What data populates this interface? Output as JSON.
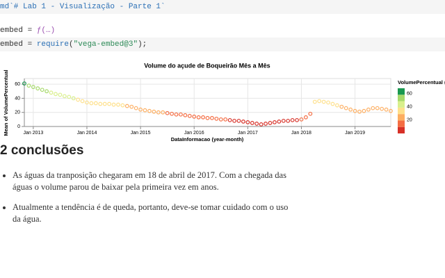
{
  "cells": [
    {
      "parts": [
        "md`# Lab 1 - Visualização - Parte 1`"
      ]
    },
    {
      "parts": [
        "embed = ",
        "ƒ(…)"
      ]
    },
    {
      "parts": [
        "embed = ",
        "require",
        "(",
        "\"vega-embed@3\"",
        ");"
      ]
    }
  ],
  "chart_data": {
    "type": "scatter",
    "title": "Volume do açude de Boqueirão Mês a Mês",
    "x_label": "DataInformacao (year-month)",
    "y_label": "Mean of VolumePercentual",
    "x": [
      "2012-11",
      "2012-12",
      "2013-01",
      "2013-02",
      "2013-03",
      "2013-04",
      "2013-05",
      "2013-06",
      "2013-07",
      "2013-08",
      "2013-09",
      "2013-10",
      "2013-11",
      "2013-12",
      "2014-01",
      "2014-02",
      "2014-03",
      "2014-04",
      "2014-05",
      "2014-06",
      "2014-07",
      "2014-08",
      "2014-09",
      "2014-10",
      "2014-11",
      "2014-12",
      "2015-01",
      "2015-02",
      "2015-03",
      "2015-04",
      "2015-05",
      "2015-06",
      "2015-07",
      "2015-08",
      "2015-09",
      "2015-10",
      "2015-11",
      "2015-12",
      "2016-01",
      "2016-02",
      "2016-03",
      "2016-04",
      "2016-05",
      "2016-06",
      "2016-07",
      "2016-08",
      "2016-09",
      "2016-10",
      "2016-11",
      "2016-12",
      "2017-01",
      "2017-02",
      "2017-03",
      "2017-04",
      "2017-05",
      "2017-06",
      "2017-07",
      "2017-08",
      "2017-09",
      "2017-10",
      "2017-11",
      "2017-12",
      "2018-01",
      "2018-02",
      "2018-03",
      "2018-04",
      "2018-05",
      "2018-06",
      "2018-07",
      "2018-08",
      "2018-09",
      "2018-10",
      "2018-11",
      "2018-12",
      "2019-01",
      "2019-02",
      "2019-03",
      "2019-04",
      "2019-05",
      "2019-06",
      "2019-07",
      "2019-08",
      "2019-09"
    ],
    "values": [
      61,
      58,
      56,
      54,
      52,
      50,
      48,
      46,
      45,
      43,
      42,
      40,
      38,
      36,
      34,
      33,
      33,
      32,
      32,
      32,
      31,
      31,
      30,
      29,
      28,
      26,
      24,
      23,
      22,
      21,
      20,
      20,
      19,
      18,
      17,
      17,
      16,
      15,
      14,
      13,
      13,
      12,
      12,
      11,
      10,
      10,
      9,
      8,
      8,
      7,
      6,
      5,
      4,
      3,
      4,
      5,
      6,
      7,
      8,
      8,
      9,
      9,
      10,
      13,
      18,
      35,
      36,
      35,
      34,
      32,
      30,
      28,
      26,
      24,
      22,
      21,
      22,
      24,
      26,
      26,
      25,
      24,
      22
    ],
    "xlim": [
      "2012-11",
      "2019-09"
    ],
    "xticks": [
      {
        "value": "2013-01",
        "label": "Jan 2013"
      },
      {
        "value": "2014-01",
        "label": "Jan 2014"
      },
      {
        "value": "2015-01",
        "label": "Jan 2015"
      },
      {
        "value": "2016-01",
        "label": "Jan 2016"
      },
      {
        "value": "2017-01",
        "label": "Jan 2017"
      },
      {
        "value": "2018-01",
        "label": "Jan 2018"
      },
      {
        "value": "2019-01",
        "label": "Jan 2019"
      }
    ],
    "ylim": [
      0,
      68
    ],
    "yticks": [
      0,
      20,
      40,
      60
    ],
    "grid": true,
    "colors": [
      "#d73027",
      "#f46d43",
      "#fdae61",
      "#fee08b",
      "#d9ef8b",
      "#a6d96a",
      "#1a9850"
    ],
    "legend": {
      "title": "VolumePercentual (I",
      "ticks": [
        20,
        40,
        60
      ],
      "position": "right"
    }
  },
  "section": {
    "title": "2 conclusões",
    "bullets": [
      "As águas da tranposição chegaram em 18 de abril de 2017. Com a chegada das águas o volume parou de baixar pela primeira vez em anos.",
      "Atualmente a tendência é de queda, portanto, deve-se tomar cuidado com o uso da água."
    ]
  }
}
